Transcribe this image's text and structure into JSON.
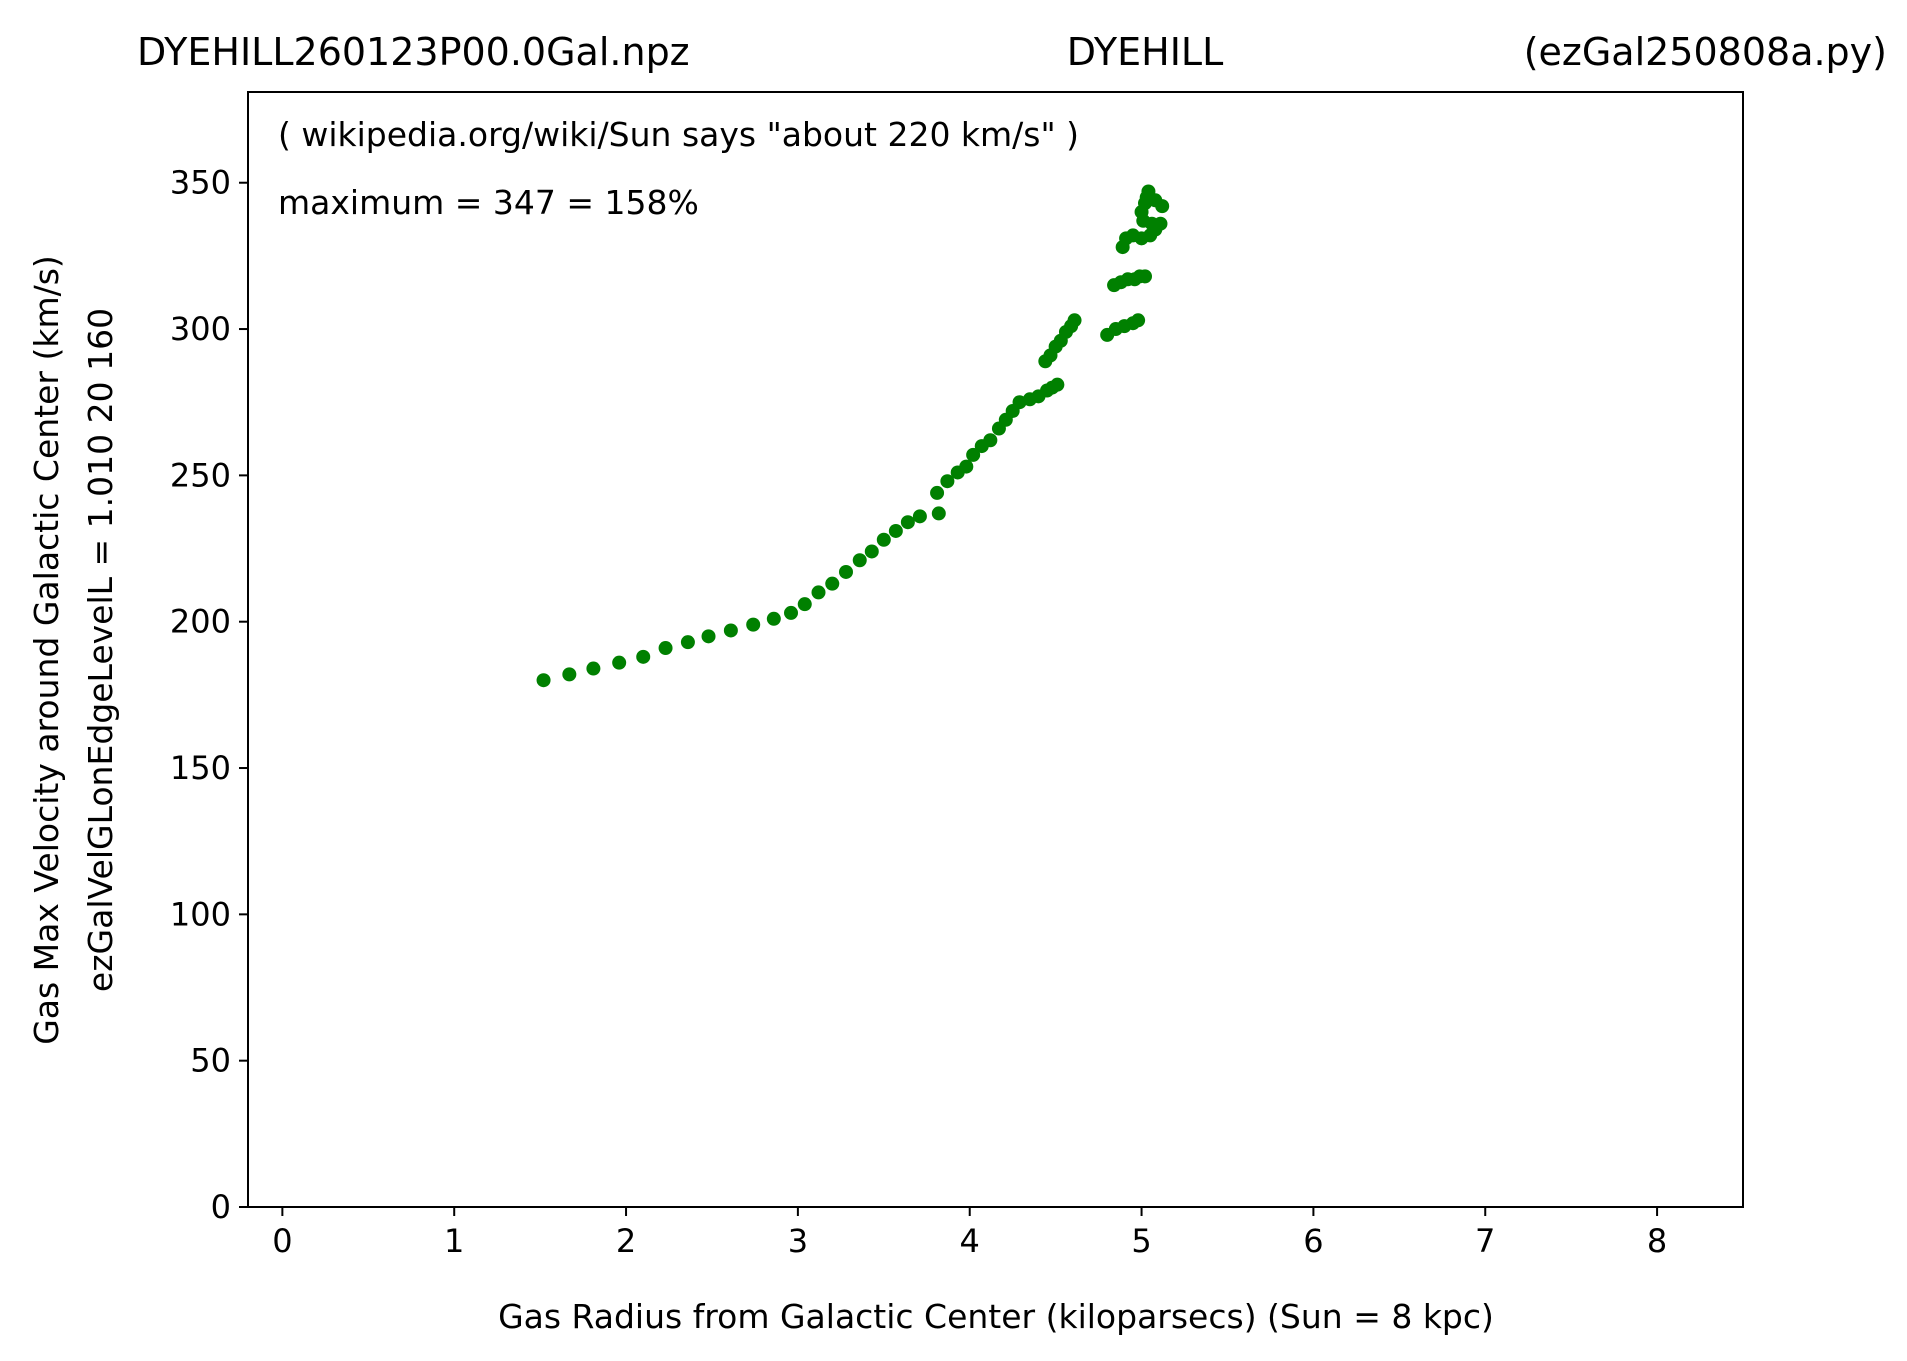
{
  "header": {
    "left": "DYEHILL260123P00.0Gal.npz",
    "center": "DYEHILL",
    "right": "(ezGal250808a.py)"
  },
  "chart_data": {
    "type": "scatter",
    "xlabel": "Gas Radius from Galactic Center (kiloparsecs)  (Sun = 8 kpc)",
    "ylabel_line1": "Gas Max Velocity around Galactic Center (km/s)",
    "ylabel_line2": "ezGalVelGLonEdgeLevelL = 1.010  20  160",
    "annotations": [
      "( wikipedia.org/wiki/Sun says \"about 220 km/s\" )",
      "maximum = 347 = 158%"
    ],
    "xlim": [
      -0.2,
      8.5
    ],
    "ylim": [
      0,
      381
    ],
    "xticks": [
      0,
      1,
      2,
      3,
      4,
      5,
      6,
      7,
      8
    ],
    "yticks": [
      0,
      50,
      100,
      150,
      200,
      250,
      300,
      350
    ],
    "marker_color": "#008000",
    "points": [
      [
        1.52,
        180
      ],
      [
        1.67,
        182
      ],
      [
        1.81,
        184
      ],
      [
        1.96,
        186
      ],
      [
        2.1,
        188
      ],
      [
        2.23,
        191
      ],
      [
        2.36,
        193
      ],
      [
        2.48,
        195
      ],
      [
        2.61,
        197
      ],
      [
        2.74,
        199
      ],
      [
        2.86,
        201
      ],
      [
        2.96,
        203
      ],
      [
        3.04,
        206
      ],
      [
        3.12,
        210
      ],
      [
        3.2,
        213
      ],
      [
        3.28,
        217
      ],
      [
        3.36,
        221
      ],
      [
        3.43,
        224
      ],
      [
        3.5,
        228
      ],
      [
        3.57,
        231
      ],
      [
        3.64,
        234
      ],
      [
        3.71,
        236
      ],
      [
        3.82,
        237
      ],
      [
        3.81,
        244
      ],
      [
        3.87,
        248
      ],
      [
        3.93,
        251
      ],
      [
        3.98,
        253
      ],
      [
        4.02,
        257
      ],
      [
        4.07,
        260
      ],
      [
        4.12,
        262
      ],
      [
        4.17,
        266
      ],
      [
        4.21,
        269
      ],
      [
        4.25,
        272
      ],
      [
        4.29,
        275
      ],
      [
        4.35,
        276
      ],
      [
        4.4,
        277
      ],
      [
        4.45,
        279
      ],
      [
        4.48,
        280
      ],
      [
        4.51,
        281
      ],
      [
        4.44,
        289
      ],
      [
        4.47,
        291
      ],
      [
        4.5,
        294
      ],
      [
        4.53,
        296
      ],
      [
        4.56,
        299
      ],
      [
        4.59,
        301
      ],
      [
        4.61,
        303
      ],
      [
        4.8,
        298
      ],
      [
        4.85,
        300
      ],
      [
        4.9,
        301
      ],
      [
        4.95,
        302
      ],
      [
        4.98,
        303
      ],
      [
        4.84,
        315
      ],
      [
        4.88,
        316
      ],
      [
        4.92,
        317
      ],
      [
        4.96,
        317
      ],
      [
        4.99,
        318
      ],
      [
        5.02,
        318
      ],
      [
        4.89,
        328
      ],
      [
        4.91,
        331
      ],
      [
        4.95,
        332
      ],
      [
        5.0,
        331
      ],
      [
        5.05,
        332
      ],
      [
        5.08,
        334
      ],
      [
        5.11,
        336
      ],
      [
        5.06,
        336
      ],
      [
        5.01,
        337
      ],
      [
        5.0,
        340
      ],
      [
        5.02,
        343
      ],
      [
        5.03,
        345
      ],
      [
        5.04,
        347
      ],
      [
        5.08,
        344
      ],
      [
        5.12,
        342
      ]
    ]
  }
}
